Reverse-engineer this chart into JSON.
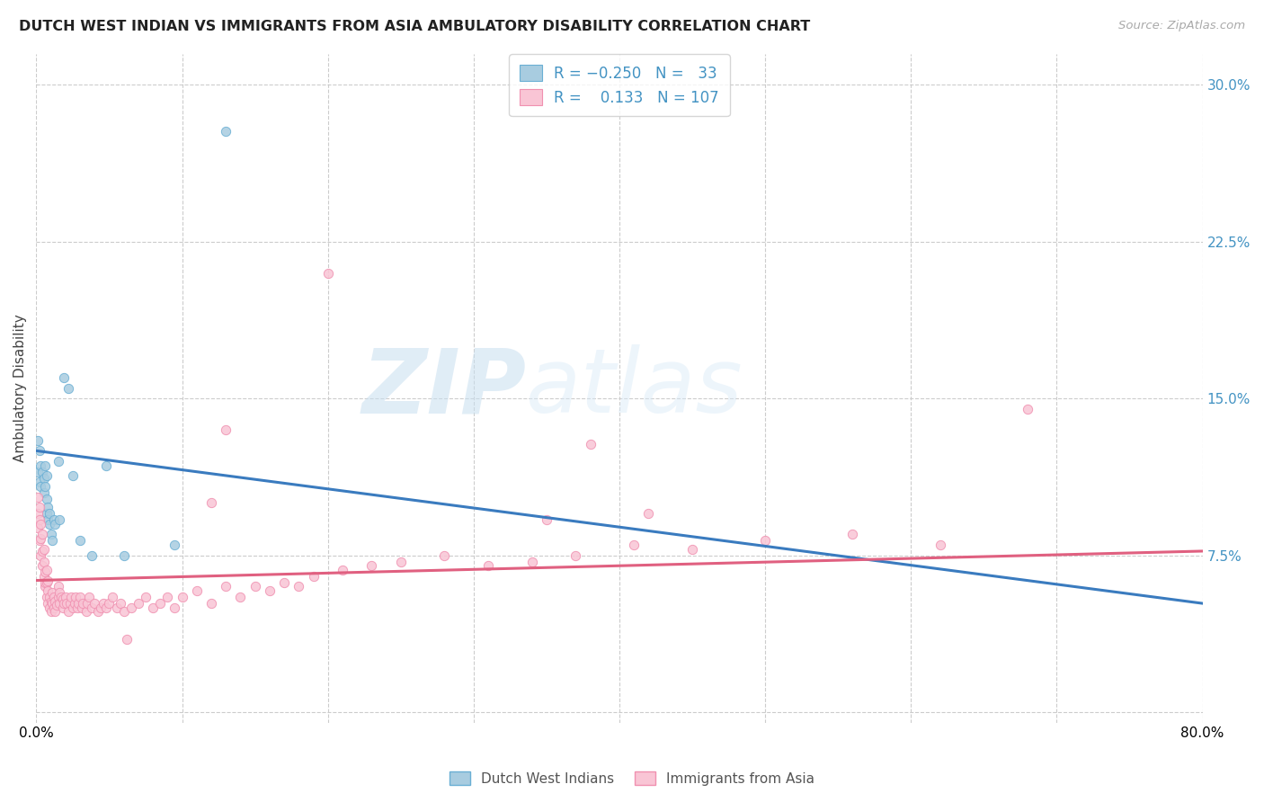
{
  "title": "DUTCH WEST INDIAN VS IMMIGRANTS FROM ASIA AMBULATORY DISABILITY CORRELATION CHART",
  "source": "Source: ZipAtlas.com",
  "ylabel": "Ambulatory Disability",
  "xlim": [
    0.0,
    0.8
  ],
  "ylim": [
    -0.005,
    0.315
  ],
  "yticks": [
    0.0,
    0.075,
    0.15,
    0.225,
    0.3
  ],
  "watermark_zip": "ZIP",
  "watermark_atlas": "atlas",
  "blue_scatter_face": "#a8cce0",
  "blue_scatter_edge": "#6aafd4",
  "pink_scatter_face": "#f9c5d5",
  "pink_scatter_edge": "#f090b0",
  "blue_line_color": "#3a7bbf",
  "pink_line_color": "#e06080",
  "right_tick_color": "#4393c3",
  "label1": "Dutch West Indians",
  "label2": "Immigrants from Asia",
  "blue_x": [
    0.001,
    0.001,
    0.002,
    0.002,
    0.003,
    0.003,
    0.004,
    0.005,
    0.005,
    0.006,
    0.006,
    0.007,
    0.007,
    0.007,
    0.008,
    0.008,
    0.009,
    0.009,
    0.01,
    0.011,
    0.012,
    0.013,
    0.015,
    0.016,
    0.019,
    0.022,
    0.025,
    0.03,
    0.038,
    0.048,
    0.06,
    0.095,
    0.13
  ],
  "blue_y": [
    0.13,
    0.115,
    0.125,
    0.11,
    0.118,
    0.108,
    0.115,
    0.105,
    0.112,
    0.118,
    0.108,
    0.102,
    0.113,
    0.095,
    0.098,
    0.092,
    0.095,
    0.09,
    0.085,
    0.082,
    0.092,
    0.09,
    0.12,
    0.092,
    0.16,
    0.155,
    0.113,
    0.082,
    0.075,
    0.118,
    0.075,
    0.08,
    0.278
  ],
  "pink_x": [
    0.001,
    0.001,
    0.001,
    0.002,
    0.002,
    0.002,
    0.003,
    0.003,
    0.003,
    0.004,
    0.004,
    0.004,
    0.005,
    0.005,
    0.005,
    0.006,
    0.006,
    0.006,
    0.007,
    0.007,
    0.007,
    0.008,
    0.008,
    0.008,
    0.009,
    0.009,
    0.01,
    0.01,
    0.011,
    0.011,
    0.012,
    0.012,
    0.013,
    0.013,
    0.014,
    0.015,
    0.015,
    0.016,
    0.016,
    0.017,
    0.018,
    0.018,
    0.019,
    0.02,
    0.021,
    0.022,
    0.023,
    0.024,
    0.025,
    0.026,
    0.027,
    0.028,
    0.029,
    0.03,
    0.031,
    0.032,
    0.034,
    0.035,
    0.036,
    0.038,
    0.04,
    0.042,
    0.044,
    0.046,
    0.048,
    0.05,
    0.052,
    0.055,
    0.058,
    0.06,
    0.062,
    0.065,
    0.07,
    0.075,
    0.08,
    0.085,
    0.09,
    0.095,
    0.1,
    0.11,
    0.12,
    0.13,
    0.14,
    0.15,
    0.16,
    0.17,
    0.18,
    0.19,
    0.21,
    0.23,
    0.25,
    0.28,
    0.31,
    0.34,
    0.37,
    0.41,
    0.45,
    0.5,
    0.56,
    0.62,
    0.35,
    0.38,
    0.42,
    0.13,
    0.12,
    0.2,
    0.68
  ],
  "pink_y": [
    0.088,
    0.095,
    0.103,
    0.082,
    0.092,
    0.098,
    0.075,
    0.083,
    0.09,
    0.07,
    0.077,
    0.085,
    0.065,
    0.072,
    0.078,
    0.06,
    0.067,
    0.062,
    0.055,
    0.062,
    0.068,
    0.052,
    0.058,
    0.063,
    0.05,
    0.055,
    0.048,
    0.053,
    0.052,
    0.057,
    0.05,
    0.055,
    0.048,
    0.053,
    0.051,
    0.055,
    0.06,
    0.052,
    0.057,
    0.055,
    0.05,
    0.054,
    0.052,
    0.055,
    0.052,
    0.048,
    0.052,
    0.055,
    0.05,
    0.052,
    0.055,
    0.05,
    0.052,
    0.055,
    0.05,
    0.052,
    0.048,
    0.052,
    0.055,
    0.05,
    0.052,
    0.048,
    0.05,
    0.052,
    0.05,
    0.052,
    0.055,
    0.05,
    0.052,
    0.048,
    0.035,
    0.05,
    0.052,
    0.055,
    0.05,
    0.052,
    0.055,
    0.05,
    0.055,
    0.058,
    0.052,
    0.06,
    0.055,
    0.06,
    0.058,
    0.062,
    0.06,
    0.065,
    0.068,
    0.07,
    0.072,
    0.075,
    0.07,
    0.072,
    0.075,
    0.08,
    0.078,
    0.082,
    0.085,
    0.08,
    0.092,
    0.128,
    0.095,
    0.135,
    0.1,
    0.21,
    0.145
  ],
  "blue_line_x0": 0.0,
  "blue_line_y0": 0.125,
  "blue_line_x1": 0.8,
  "blue_line_y1": 0.052,
  "pink_line_x0": 0.0,
  "pink_line_y0": 0.063,
  "pink_line_x1": 0.8,
  "pink_line_y1": 0.077
}
